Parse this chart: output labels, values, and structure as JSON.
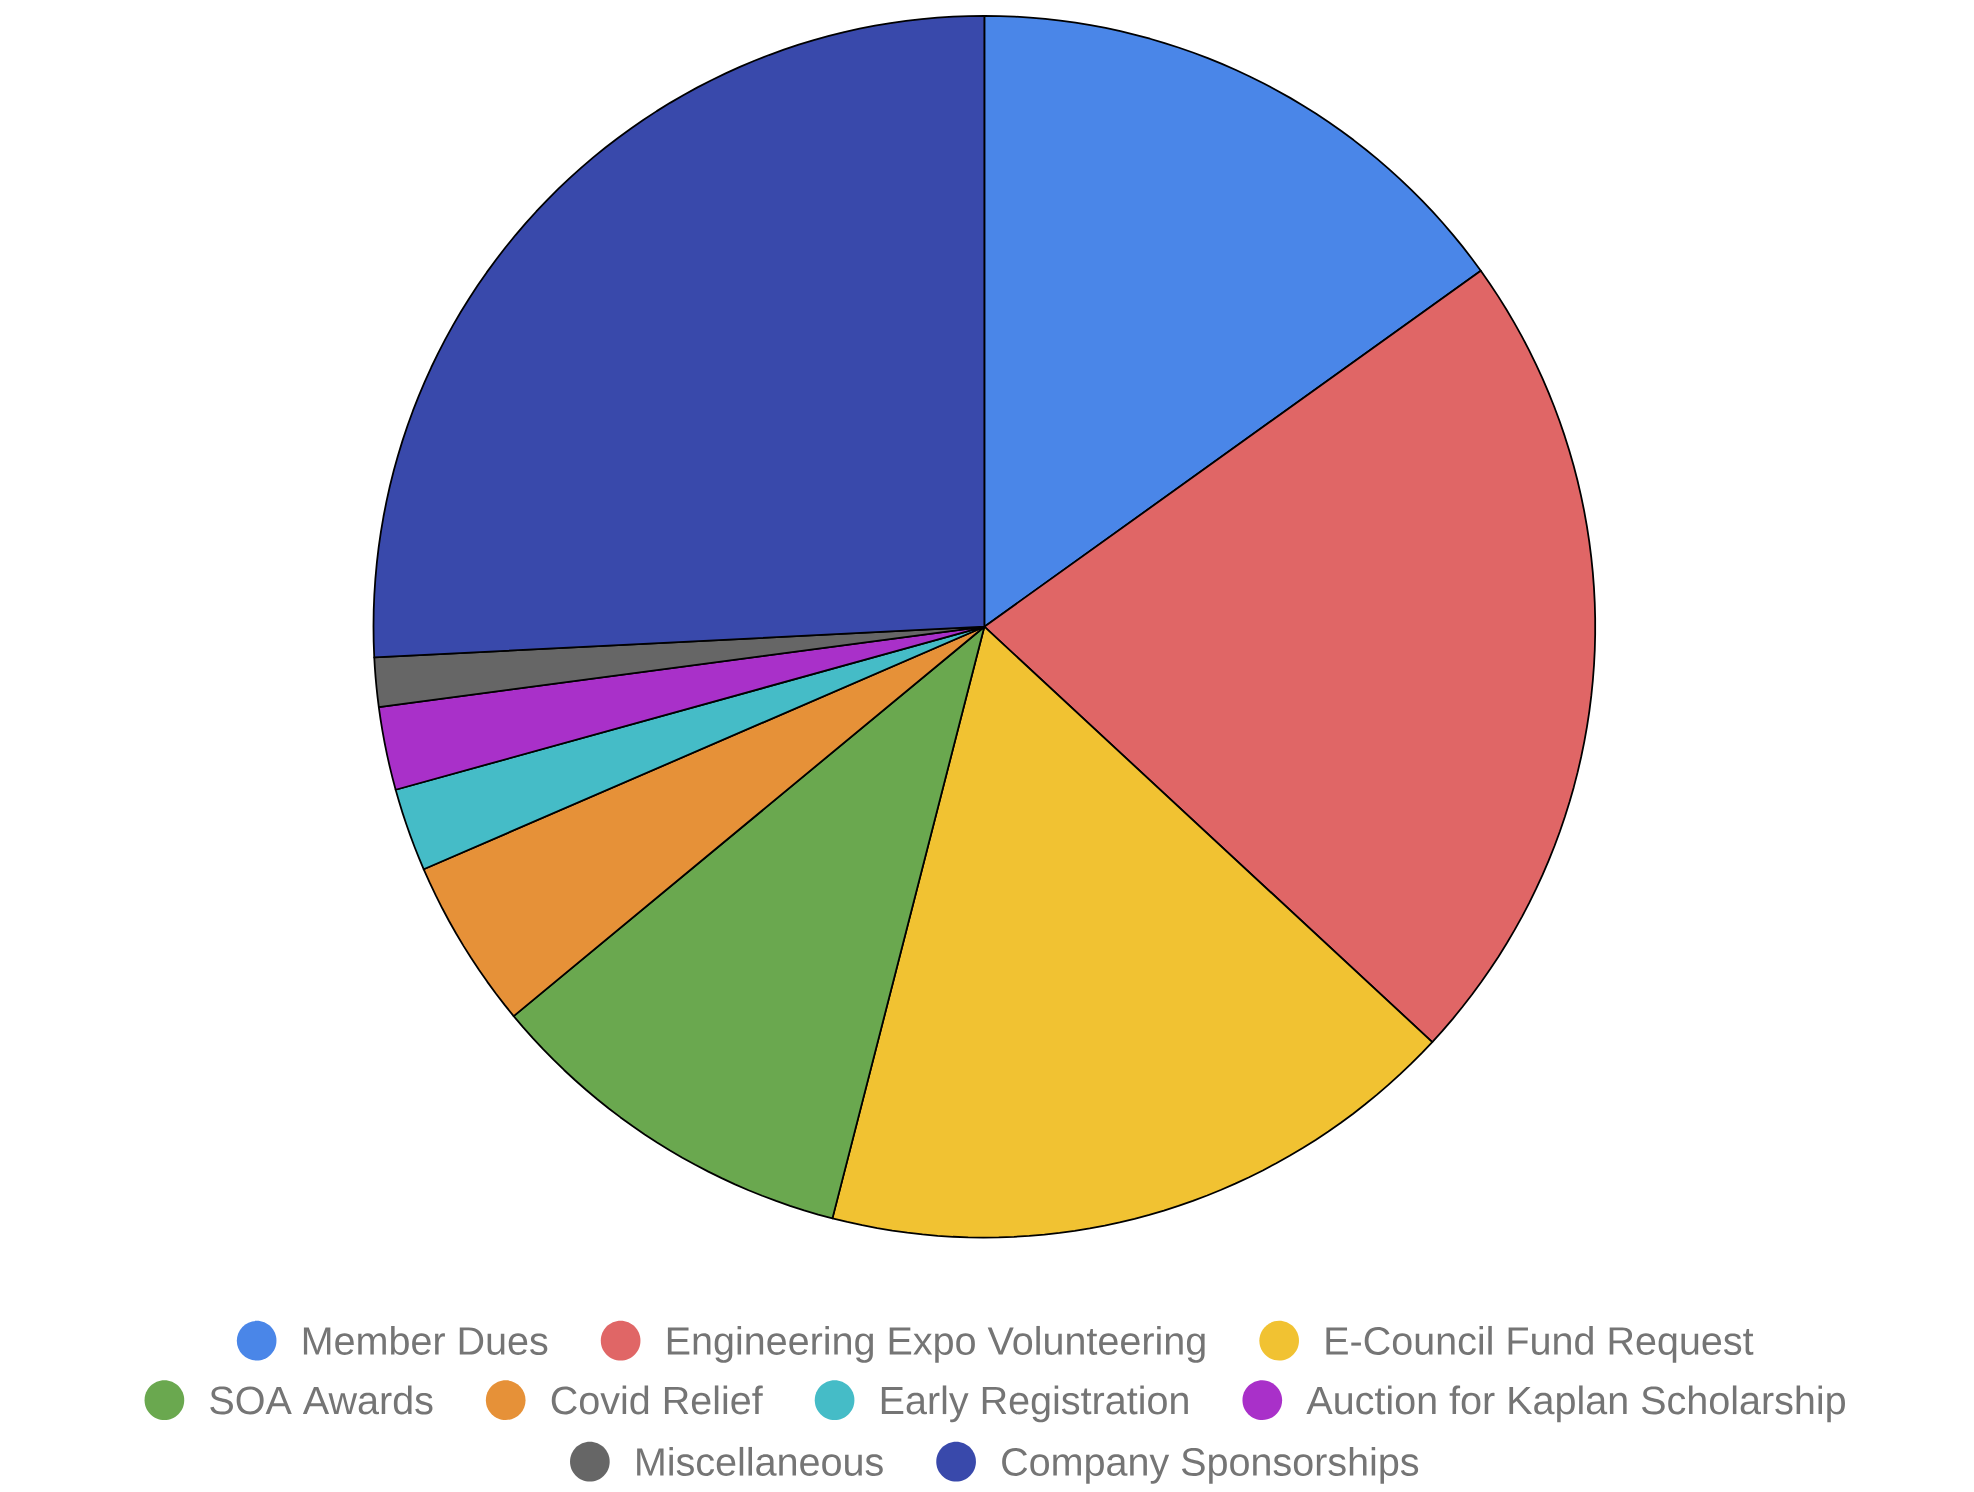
{
  "chart_data": {
    "type": "pie",
    "categories": [
      "Member Dues",
      "Engineering Expo Volunteering",
      "E-Council Fund Request",
      "SOA Awards",
      "Covid Relief",
      "Early Registration",
      "Auction for Kaplan Scholarship",
      "Miscellaneous",
      "Company Sponsorships"
    ],
    "values": [
      15.1,
      21.8,
      17.1,
      10.0,
      4.5,
      2.2,
      2.2,
      1.3,
      25.8
    ],
    "colors": [
      "#4a86e8",
      "#e06666",
      "#f1c232",
      "#6aa84f",
      "#e69138",
      "#45bcc7",
      "#a930c9",
      "#666666",
      "#3949ab"
    ],
    "legend": "bottom"
  }
}
